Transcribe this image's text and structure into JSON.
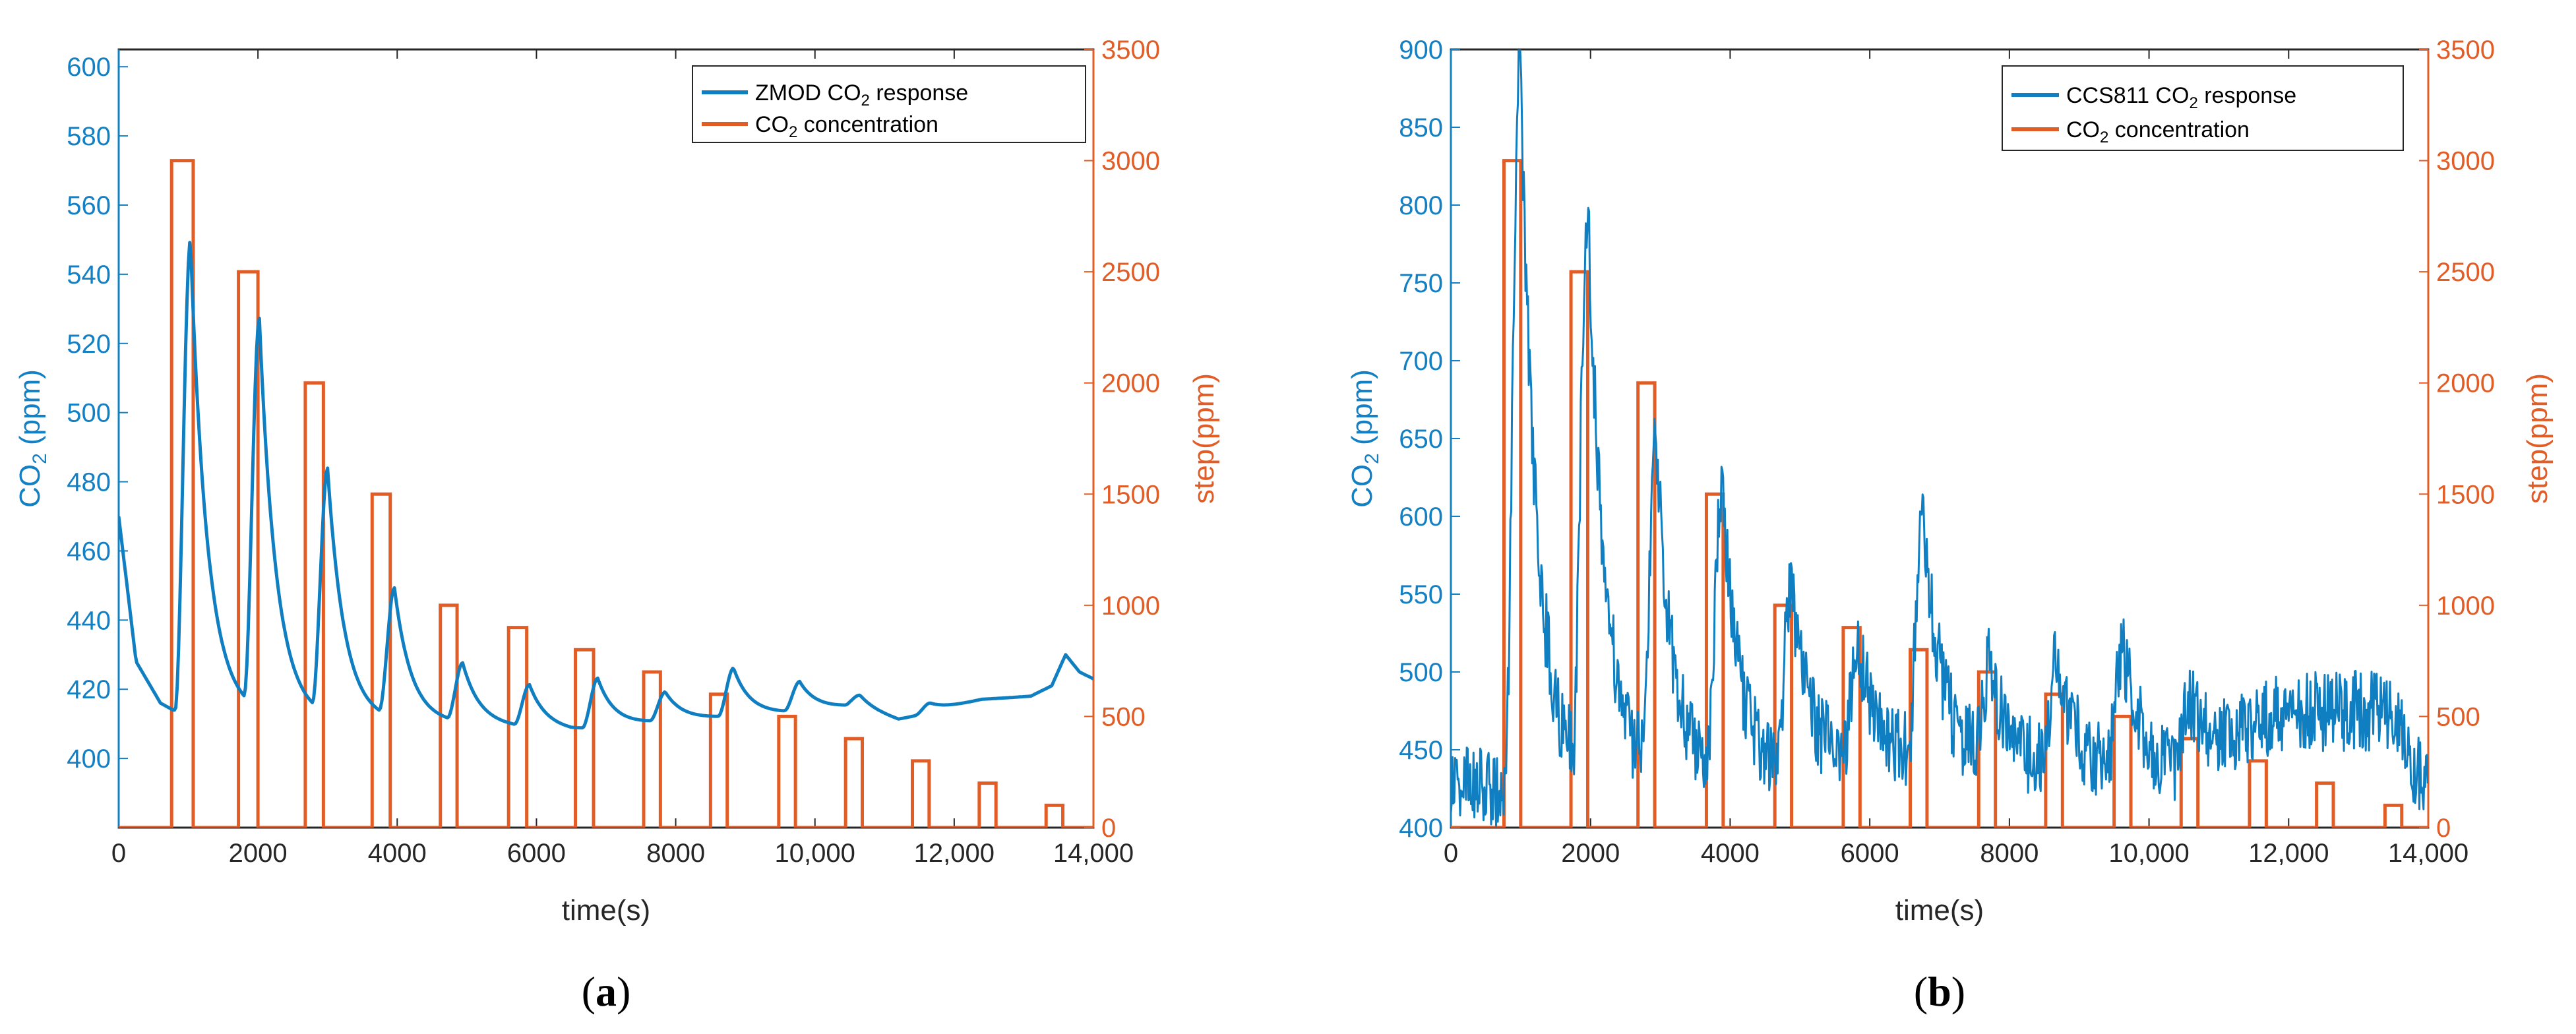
{
  "chart_data": [
    {
      "type": "line",
      "panel_label": "(a)",
      "caption": {
        "open": "(",
        "letter": "a",
        "close": ")"
      },
      "xlabel": "time(s)",
      "ylabel_left": {
        "prefix": "CO",
        "sub": "2",
        "suffix": " (ppm)"
      },
      "ylabel_right": "step(ppm)",
      "xlim": [
        0,
        14000
      ],
      "ylim_left": [
        380,
        605
      ],
      "ylim_right": [
        0,
        3500
      ],
      "x_ticks": [
        0,
        2000,
        4000,
        6000,
        8000,
        10000,
        12000,
        14000
      ],
      "x_tick_labels": [
        "0",
        "2000",
        "4000",
        "6000",
        "8000",
        "10,000",
        "12,000",
        "14,000"
      ],
      "y_left_ticks": [
        400,
        420,
        440,
        460,
        480,
        500,
        520,
        540,
        560,
        580,
        600
      ],
      "y_left_tick_labels": [
        "400",
        "420",
        "440",
        "460",
        "480",
        "500",
        "520",
        "540",
        "560",
        "580",
        "600"
      ],
      "y_right_ticks": [
        0,
        500,
        1000,
        1500,
        2000,
        2500,
        3000,
        3500
      ],
      "y_right_tick_labels": [
        "0",
        "500",
        "1000",
        "1500",
        "2000",
        "2500",
        "3000",
        "3500"
      ],
      "legend": [
        {
          "prefix": "ZMOD CO",
          "sub": "2",
          "suffix": " response",
          "color": "#0f7fc2"
        },
        {
          "prefix": "CO",
          "sub": "2",
          "suffix": " concentration",
          "color": "#e25c26"
        }
      ],
      "series": [
        {
          "name": "ZMOD CO2 response",
          "axis": "left",
          "color": "#0f7fc2",
          "noise": 0,
          "baseline": [
            [
              0,
              470
            ],
            [
              250,
              428
            ],
            [
              600,
              416
            ],
            [
              780,
              414
            ],
            [
              3000,
              411
            ],
            [
              5000,
              410
            ],
            [
              6500,
              408
            ],
            [
              8000,
              411
            ],
            [
              9500,
              413
            ],
            [
              10500,
              415
            ],
            [
              11200,
              411
            ],
            [
              12400,
              417
            ],
            [
              13100,
              418
            ],
            [
              13400,
              421
            ],
            [
              13600,
              430
            ],
            [
              13800,
              425
            ],
            [
              14000,
              423
            ]
          ],
          "peaks": [
            [
              1030,
              550
            ],
            [
              2020,
              525
            ],
            [
              3000,
              482
            ],
            [
              3960,
              448
            ],
            [
              4940,
              427
            ],
            [
              5900,
              421
            ],
            [
              6880,
              423
            ],
            [
              7850,
              419
            ],
            [
              8830,
              426
            ],
            [
              9780,
              422
            ],
            [
              10650,
              418
            ],
            [
              11650,
              416
            ]
          ]
        },
        {
          "name": "CO2 concentration",
          "axis": "right",
          "color": "#e25c26",
          "type": "step",
          "pulses": [
            [
              760,
              1070,
              3000
            ],
            [
              1720,
              2000,
              2500
            ],
            [
              2680,
              2940,
              2000
            ],
            [
              3640,
              3900,
              1500
            ],
            [
              4620,
              4860,
              1000
            ],
            [
              5600,
              5860,
              900
            ],
            [
              6560,
              6820,
              800
            ],
            [
              7540,
              7780,
              700
            ],
            [
              8500,
              8740,
              600
            ],
            [
              9480,
              9720,
              500
            ],
            [
              10440,
              10680,
              400
            ],
            [
              11400,
              11640,
              300
            ],
            [
              12360,
              12600,
              200
            ],
            [
              13320,
              13560,
              100
            ]
          ]
        }
      ]
    },
    {
      "type": "line",
      "panel_label": "(b)",
      "caption": {
        "open": "(",
        "letter": "b",
        "close": ")"
      },
      "xlabel": "time(s)",
      "ylabel_left": {
        "prefix": "CO",
        "sub": "2",
        "suffix": " (ppm)"
      },
      "ylabel_right": "step(ppm)",
      "xlim": [
        0,
        14000
      ],
      "ylim_left": [
        400,
        900
      ],
      "ylim_right": [
        0,
        3500
      ],
      "x_ticks": [
        0,
        2000,
        4000,
        6000,
        8000,
        10000,
        12000,
        14000
      ],
      "x_tick_labels": [
        "0",
        "2000",
        "4000",
        "6000",
        "8000",
        "10,000",
        "12,000",
        "14,000"
      ],
      "y_left_ticks": [
        400,
        450,
        500,
        550,
        600,
        650,
        700,
        750,
        800,
        850,
        900
      ],
      "y_left_tick_labels": [
        "400",
        "450",
        "500",
        "550",
        "600",
        "650",
        "700",
        "750",
        "800",
        "850",
        "900"
      ],
      "y_right_ticks": [
        0,
        500,
        1000,
        1500,
        2000,
        2500,
        3000,
        3500
      ],
      "y_right_tick_labels": [
        "0",
        "500",
        "1000",
        "1500",
        "2000",
        "2500",
        "3000",
        "3500"
      ],
      "legend": [
        {
          "prefix": "CCS811 CO",
          "sub": "2",
          "suffix": " response",
          "color": "#0f7fc2"
        },
        {
          "prefix": "CO",
          "sub": "2",
          "suffix": " concentration",
          "color": "#e25c26"
        }
      ],
      "series": [
        {
          "name": "CCS811 CO2 response",
          "axis": "left",
          "color": "#0f7fc2",
          "noise": 26,
          "baseline": [
            [
              0,
              430
            ],
            [
              700,
              425
            ],
            [
              2000,
              430
            ],
            [
              3500,
              435
            ],
            [
              5000,
              440
            ],
            [
              7000,
              445
            ],
            [
              8500,
              440
            ],
            [
              9500,
              440
            ],
            [
              10500,
              435
            ],
            [
              11000,
              450
            ],
            [
              11600,
              470
            ],
            [
              12500,
              475
            ],
            [
              13500,
              475
            ],
            [
              13800,
              430
            ],
            [
              14000,
              440
            ]
          ],
          "peaks": [
            [
              990,
              895
            ],
            [
              1960,
              795
            ],
            [
              2940,
              640
            ],
            [
              3880,
              612
            ],
            [
              4880,
              552
            ],
            [
              5840,
              520
            ],
            [
              6760,
              605
            ],
            [
              7720,
              500
            ],
            [
              8690,
              505
            ],
            [
              9620,
              515
            ],
            [
              10580,
              480
            ]
          ]
        },
        {
          "name": "CO2 concentration",
          "axis": "right",
          "color": "#e25c26",
          "type": "step",
          "pulses": [
            [
              760,
              1000,
              3000
            ],
            [
              1720,
              1960,
              2500
            ],
            [
              2680,
              2920,
              2000
            ],
            [
              3660,
              3900,
              1500
            ],
            [
              4640,
              4880,
              1000
            ],
            [
              5620,
              5860,
              900
            ],
            [
              6580,
              6820,
              800
            ],
            [
              7560,
              7800,
              700
            ],
            [
              8520,
              8760,
              600
            ],
            [
              9500,
              9740,
              500
            ],
            [
              10460,
              10700,
              400
            ],
            [
              11440,
              11680,
              300
            ],
            [
              12400,
              12640,
              200
            ],
            [
              13380,
              13620,
              100
            ]
          ]
        }
      ]
    }
  ]
}
